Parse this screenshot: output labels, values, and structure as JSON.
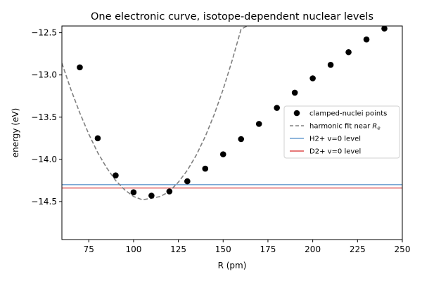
{
  "chart_data": {
    "type": "scatter",
    "title": "One electronic curve, isotope-dependent nuclear levels",
    "xlabel": "R (pm)",
    "ylabel": "energy (eV)",
    "xlim": [
      60,
      250
    ],
    "ylim": [
      -14.95,
      -12.42
    ],
    "x_ticks": [
      "75",
      "100",
      "125",
      "150",
      "175",
      "200",
      "225",
      "250"
    ],
    "x_tick_values": [
      75,
      100,
      125,
      150,
      175,
      200,
      225,
      250
    ],
    "y_ticks": [
      "−12.5",
      "−13.0",
      "−13.5",
      "−14.0",
      "−14.5"
    ],
    "y_tick_values": [
      -12.5,
      -13.0,
      -13.5,
      -14.0,
      -14.5
    ],
    "grid": false,
    "legend_position": "center-right",
    "series": [
      {
        "name": "clamped-nuclei points",
        "kind": "scatter",
        "color": "#000000",
        "x": [
          70,
          80,
          90,
          100,
          110,
          120,
          130,
          140,
          150,
          160,
          170,
          180,
          190,
          200,
          210,
          220,
          230,
          240
        ],
        "y": [
          -12.91,
          -13.75,
          -14.19,
          -14.39,
          -14.43,
          -14.38,
          -14.26,
          -14.11,
          -13.94,
          -13.76,
          -13.58,
          -13.39,
          -13.21,
          -13.04,
          -12.88,
          -12.73,
          -12.58,
          -12.45
        ]
      },
      {
        "name": "harmonic fit near R_e",
        "kind": "dashed-curve",
        "color": "#808080",
        "x": [
          60,
          65,
          70,
          75,
          80,
          85,
          90,
          95,
          100,
          105,
          110,
          115,
          120,
          125,
          130,
          135,
          140,
          145,
          150,
          155,
          160,
          165,
          170,
          172
        ],
        "y": [
          -12.86,
          -13.17,
          -13.45,
          -13.7,
          -13.92,
          -14.1,
          -14.25,
          -14.36,
          -14.44,
          -14.48,
          -14.46,
          -14.44,
          -14.38,
          -14.27,
          -14.13,
          -13.95,
          -13.73,
          -13.47,
          -13.17,
          -12.83,
          -12.46,
          -12.4,
          -12.4,
          -12.4
        ]
      },
      {
        "name": "H2+ v=0 level",
        "kind": "hline",
        "color": "#4d8ac6",
        "y": -14.3
      },
      {
        "name": "D2+ v=0 level",
        "kind": "hline",
        "color": "#d62728",
        "y": -14.34
      }
    ],
    "legend": [
      {
        "label": "clamped-nuclei points",
        "kind": "marker",
        "color": "#000000"
      },
      {
        "label": "harmonic fit near ",
        "label_suffix": "R",
        "label_subscript": "e",
        "kind": "dashed",
        "color": "#808080"
      },
      {
        "label": "H2+ v=0 level",
        "kind": "line",
        "color": "#4d8ac6"
      },
      {
        "label": "D2+ v=0 level",
        "kind": "line",
        "color": "#d62728"
      }
    ]
  }
}
